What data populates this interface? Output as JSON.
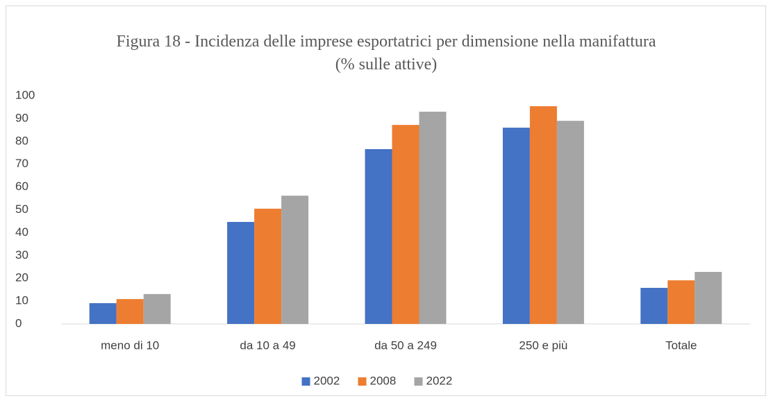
{
  "chart_data": {
    "type": "bar",
    "title": "Figura 18 - Incidenza delle imprese esportatrici per dimensione nella manifattura (% sulle attive)",
    "categories": [
      "meno di 10",
      "da 10 a 49",
      "da 50 a 249",
      "250 e più",
      "Totale"
    ],
    "series": [
      {
        "name": "2002",
        "color": "#4472c4",
        "values": [
          9.1,
          44.7,
          76.6,
          86.0,
          15.8
        ]
      },
      {
        "name": "2008",
        "color": "#ed7d31",
        "values": [
          10.9,
          50.5,
          87.2,
          95.4,
          19.1
        ]
      },
      {
        "name": "2022",
        "color": "#a5a5a5",
        "values": [
          13.1,
          56.2,
          93.0,
          89.0,
          22.8
        ]
      }
    ],
    "ylim": [
      0,
      100
    ],
    "yticks": [
      0,
      10,
      20,
      30,
      40,
      50,
      60,
      70,
      80,
      90,
      100
    ],
    "grid": false,
    "legend": "bottom"
  }
}
